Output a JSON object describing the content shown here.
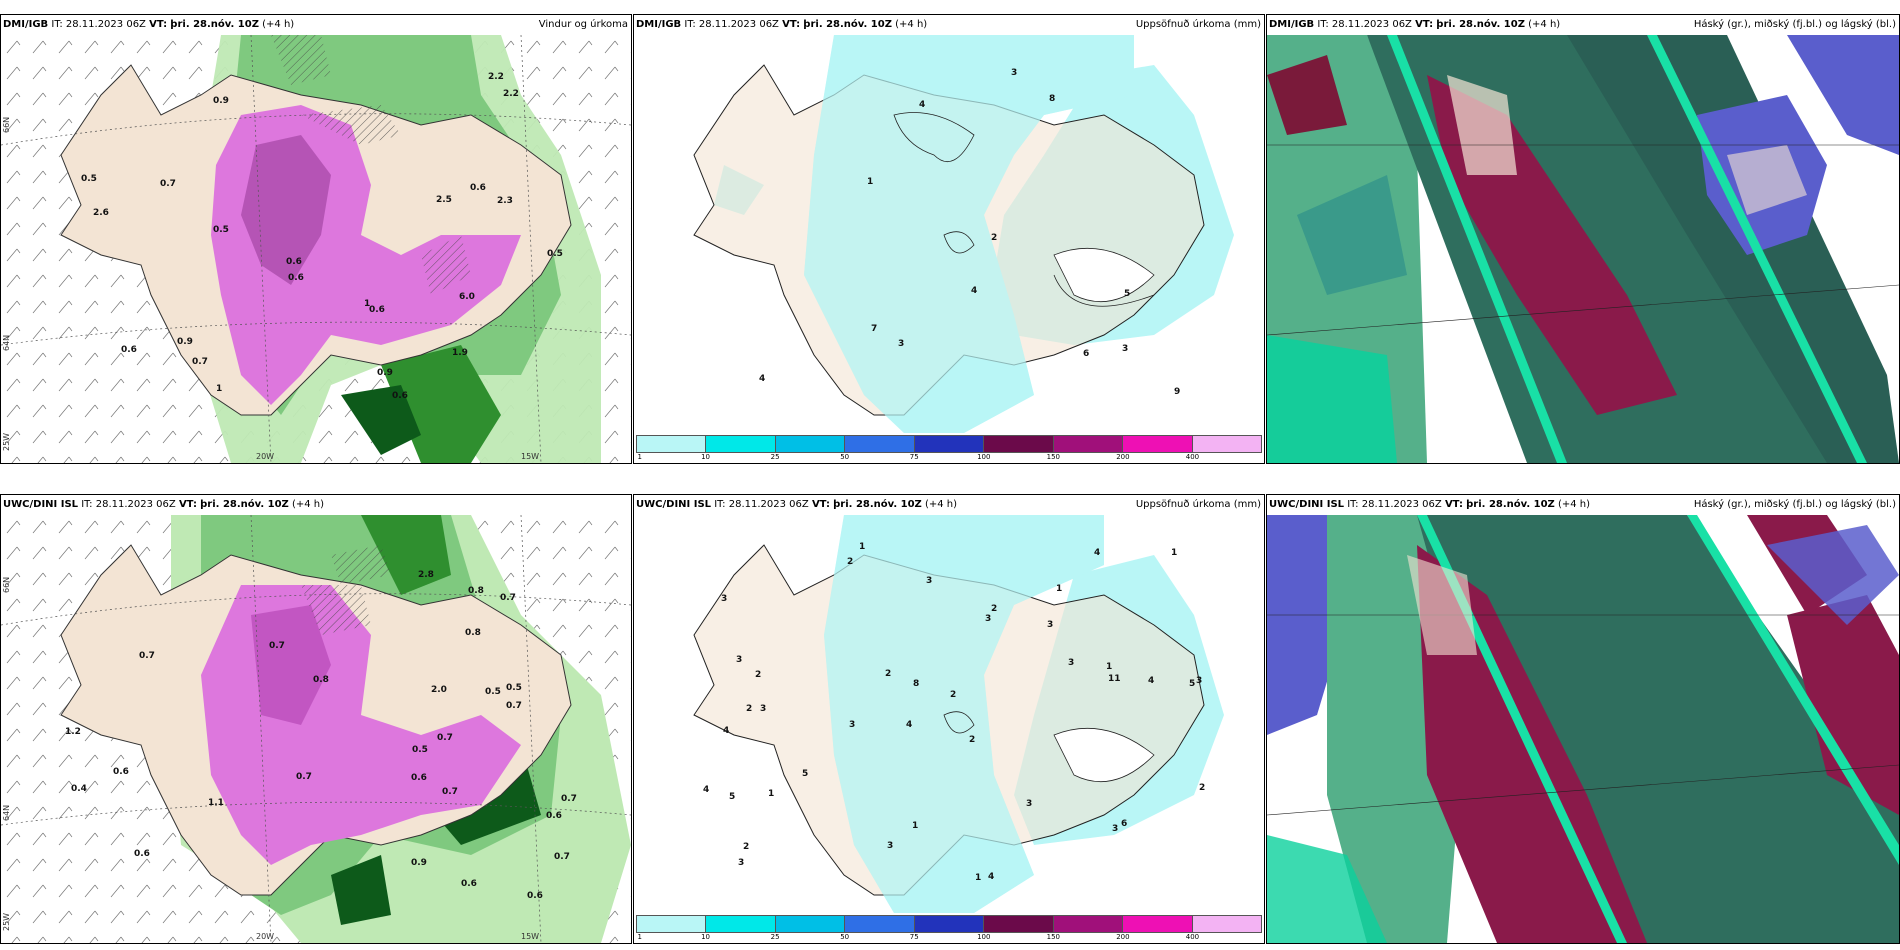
{
  "panels": {
    "p1": {
      "model": "DMI/IGB",
      "it_label": "IT:",
      "it": "28.11.2023 06Z",
      "vt_label": "VT:",
      "vt": "þri. 28.nóv. 10Z",
      "lead": "(+4 h)",
      "title": "Vindur og úrkoma"
    },
    "p2": {
      "model": "DMI/IGB",
      "it_label": "IT:",
      "it": "28.11.2023 06Z",
      "vt_label": "VT:",
      "vt": "þri. 28.nóv. 10Z",
      "lead": "(+4 h)",
      "title": "Uppsöfnuð úrkoma (mm)"
    },
    "p3": {
      "model": "DMI/IGB",
      "it_label": "IT:",
      "it": "28.11.2023 06Z",
      "vt_label": "VT:",
      "vt": "þri. 28.nóv. 10Z",
      "lead": "(+4 h)",
      "title": "Háský (gr.), miðský (fj.bl.) og lágský (bl.)"
    },
    "p4": {
      "model": "UWC/DINI ISL",
      "it_label": "IT:",
      "it": "28.11.2023 06Z",
      "vt_label": "VT:",
      "vt": "þri. 28.nóv. 10Z",
      "lead": "(+4 h)",
      "title": ""
    },
    "p5": {
      "model": "UWC/DINI ISL",
      "it_label": "IT:",
      "it": "28.11.2023 06Z",
      "vt_label": "VT:",
      "vt": "þri. 28.nóv. 10Z",
      "lead": "(+4 h)",
      "title": "Uppsöfnuð úrkoma (mm)"
    },
    "p6": {
      "model": "UWC/DINI ISL",
      "it_label": "IT:",
      "it": "28.11.2023 06Z",
      "vt_label": "VT:",
      "vt": "þri. 28.nóv. 10Z",
      "lead": "(+4 h)",
      "title": "Háský (gr.), miðský (fj.bl.) og lágský (bl.)"
    }
  },
  "axes": {
    "lat66": "66N",
    "lat64": "64N",
    "lon20": "20W",
    "lon15": "15W",
    "lon25": "25W"
  },
  "legend": {
    "colors": [
      "#b9f6f6",
      "#00e8e8",
      "#00bfe6",
      "#2f6fe6",
      "#2233bb",
      "#6b0a4a",
      "#a0107a",
      "#ee10b4",
      "#f3b3f3"
    ],
    "ticks": [
      "1",
      "10",
      "25",
      "50",
      "75",
      "100",
      "150",
      "200",
      "400"
    ]
  },
  "labels": {
    "p1": [
      "0.6",
      "0.9",
      "0.9",
      "0.7",
      "0.6",
      "0.9",
      "0.5",
      "0.5",
      "0.6",
      "0.7",
      "0.6",
      "0.5",
      "0.6",
      "1",
      "2.5",
      "2.2",
      "2.6",
      "2.2",
      "6.0",
      "2.3",
      "1.9",
      "0.6",
      "1"
    ],
    "p2": [
      "4",
      "5",
      "2",
      "4",
      "4",
      "3",
      "3",
      "8",
      "6",
      "7",
      "9",
      "1",
      "3"
    ],
    "p4": [
      "0.6",
      "0.7",
      "0.5",
      "0.6",
      "0.9",
      "0.8",
      "0.5",
      "0.8",
      "0.7",
      "0.6",
      "0.7",
      "0.5",
      "0.4",
      "0.7",
      "1.1",
      "0.6",
      "0.7",
      "0.6",
      "0.8",
      "0.7",
      "0.7",
      "1.2",
      "2.0",
      "2.8",
      "0.7",
      "0.6",
      "0.7"
    ],
    "p5": [
      "1",
      "1",
      "5",
      "4",
      "2",
      "3",
      "3",
      "3",
      "4",
      "3",
      "2",
      "3",
      "2",
      "3",
      "1",
      "4",
      "1",
      "4",
      "3",
      "5",
      "2",
      "2",
      "3",
      "4",
      "4",
      "3",
      "8",
      "11",
      "6",
      "5",
      "3",
      "2",
      "1",
      "2",
      "3",
      "2",
      "1",
      "3",
      "1",
      "3",
      "2"
    ]
  }
}
